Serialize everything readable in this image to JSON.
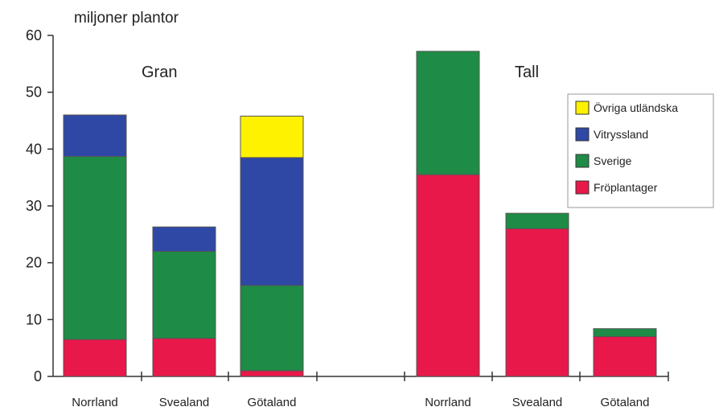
{
  "chart_data": {
    "type": "bar",
    "stacked": true,
    "ylabel": "miljoner plantor",
    "ylim": [
      0,
      60
    ],
    "yticks": [
      0,
      10,
      20,
      30,
      40,
      50,
      60
    ],
    "groups": [
      {
        "name": "Gran",
        "categories": [
          "Norrland",
          "Svealand",
          "Götaland"
        ]
      },
      {
        "name": "Tall",
        "categories": [
          "Norrland",
          "Svealand",
          "Götaland"
        ]
      }
    ],
    "series": [
      {
        "name": "Fröplantager",
        "color": "#e8184a",
        "values": [
          6.5,
          6.7,
          1.0,
          35.5,
          26.0,
          7.0
        ]
      },
      {
        "name": "Sverige",
        "color": "#1e8c46",
        "values": [
          32.2,
          15.3,
          15.0,
          21.7,
          2.7,
          1.4
        ]
      },
      {
        "name": "Vitryssland",
        "color": "#2f48a6",
        "values": [
          7.3,
          4.3,
          22.5,
          0,
          0,
          0
        ]
      },
      {
        "name": "Övriga utländska",
        "color": "#fff200",
        "values": [
          0,
          0,
          7.3,
          0,
          0,
          0
        ]
      }
    ],
    "legend": {
      "position": "right",
      "order": [
        "Övriga utländska",
        "Vitryssland",
        "Sverige",
        "Fröplantager"
      ]
    },
    "grid": false
  }
}
